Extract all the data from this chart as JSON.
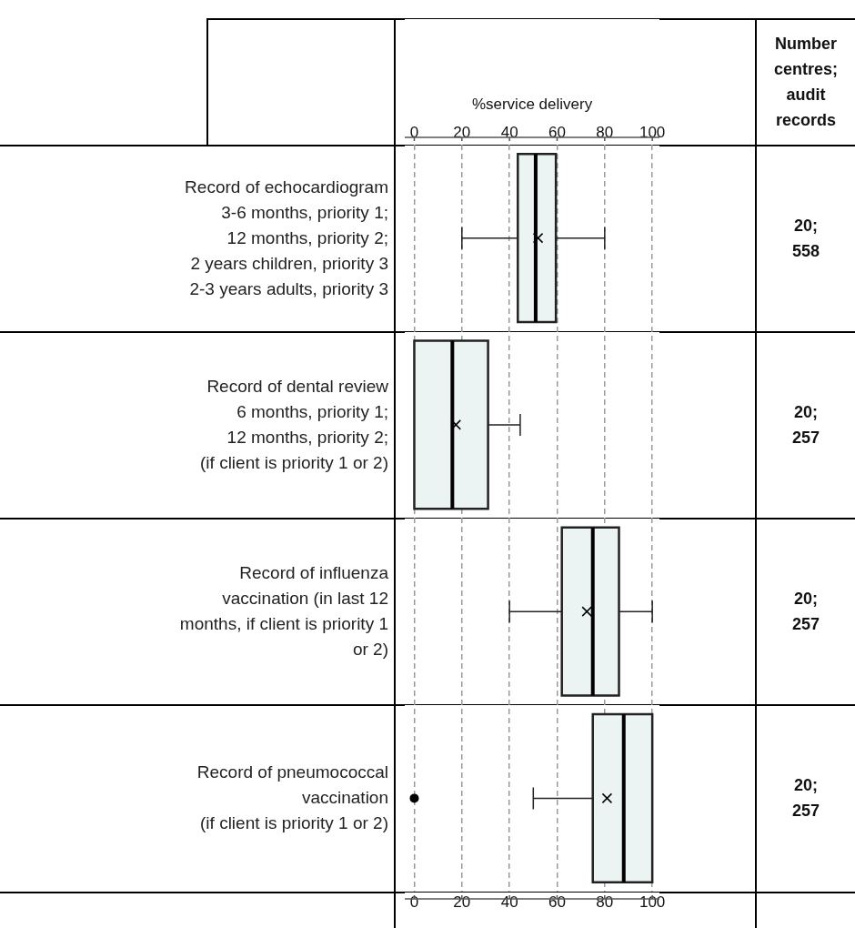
{
  "chart_data": {
    "type": "box",
    "orientation": "horizontal",
    "categories": [
      "Record of echocardiogram\n3-6 months, priority 1;\n12 months, priority 2;\n2 years children, priority 3\n2-3 years adults, priority 3",
      "Record of dental review\n6 months, priority 1;\n12 months, priority 2;\n(if client is priority 1 or 2)",
      "Record of influenza\nvaccination (in last 12\nmonths, if client is priority 1\nor 2)",
      "Record of pneumococcal\nvaccination\n(if client is priority 1 or 2)"
    ],
    "series": [
      {
        "color": "#ebf4f2",
        "boxes": [
          {
            "low": 20,
            "q1": 43.5,
            "median": 51,
            "q3": 59.5,
            "high": 80,
            "mean": 52
          },
          {
            "low": 0,
            "q1": 0,
            "median": 16,
            "q3": 31,
            "high": 44.5,
            "mean": 17.5
          },
          {
            "low": 40,
            "q1": 62,
            "median": 75,
            "q3": 86,
            "high": 100,
            "mean": 72.5
          },
          {
            "low": 50,
            "q1": 75,
            "median": 88,
            "q3": 100,
            "high": 100,
            "mean": 81,
            "outliers": [
              0
            ]
          }
        ]
      }
    ],
    "xlim": [
      -4,
      103
    ],
    "xticks": [
      0,
      20,
      40,
      60,
      80,
      100
    ],
    "x2lim": [
      -4,
      103
    ],
    "x2ticks": [
      0,
      20,
      40,
      60,
      80,
      100
    ],
    "x2label": "%service delivery",
    "grid": "x",
    "marker": "cross",
    "annotations": [
      "Number centres; audit records",
      "20; 558",
      "20; 257",
      "20; 257",
      "20; 257"
    ]
  }
}
